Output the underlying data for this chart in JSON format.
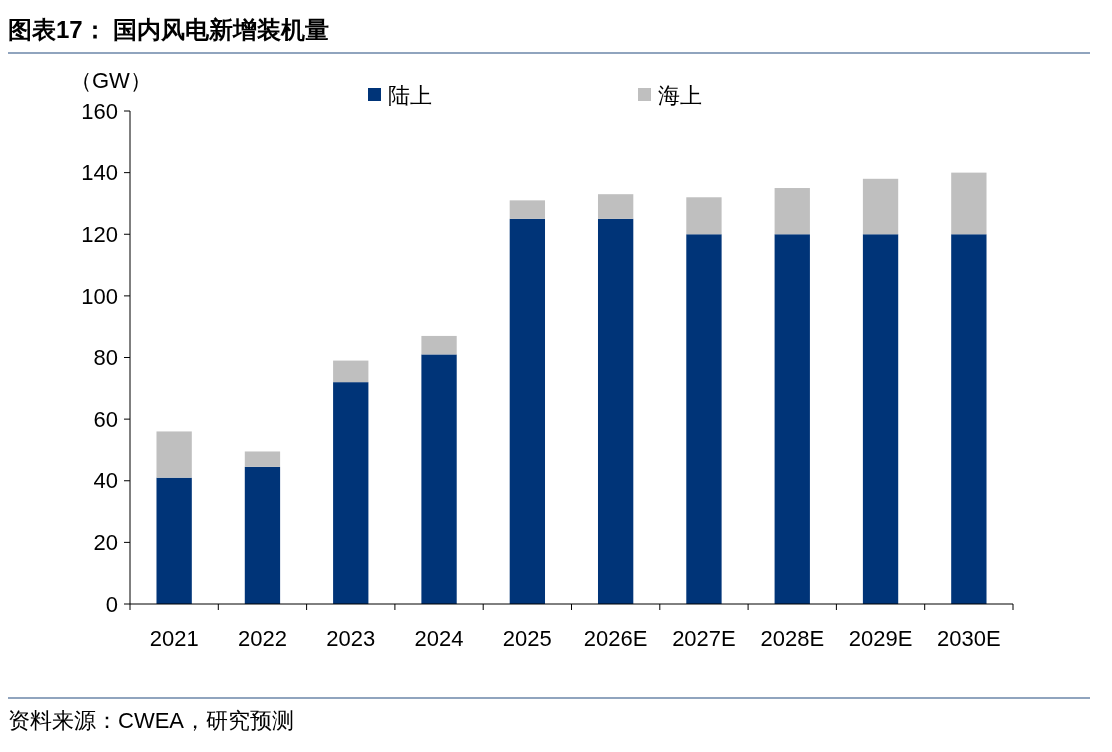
{
  "chart_data": {
    "type": "bar",
    "title": "图表17：  国内风电新增装机量",
    "ylabel": "（GW）",
    "stacked": true,
    "legend": "top",
    "categories": [
      "2021",
      "2022",
      "2023",
      "2024",
      "2025",
      "2026E",
      "2027E",
      "2028E",
      "2029E",
      "2030E"
    ],
    "series": [
      {
        "name": "陆上",
        "color": "#003478",
        "values": [
          41,
          44.5,
          72,
          81,
          125,
          125,
          120,
          120,
          120,
          120
        ]
      },
      {
        "name": "海上",
        "color": "#bfbfbf",
        "values": [
          15,
          5,
          7,
          6,
          6,
          8,
          12,
          15,
          18,
          20
        ]
      }
    ],
    "ylim": [
      0,
      160
    ],
    "yticks": [
      0,
      20,
      40,
      60,
      80,
      100,
      120,
      140,
      160
    ],
    "grid": false,
    "annotations": [
      "资料来源：CWEA，研究预测"
    ]
  }
}
